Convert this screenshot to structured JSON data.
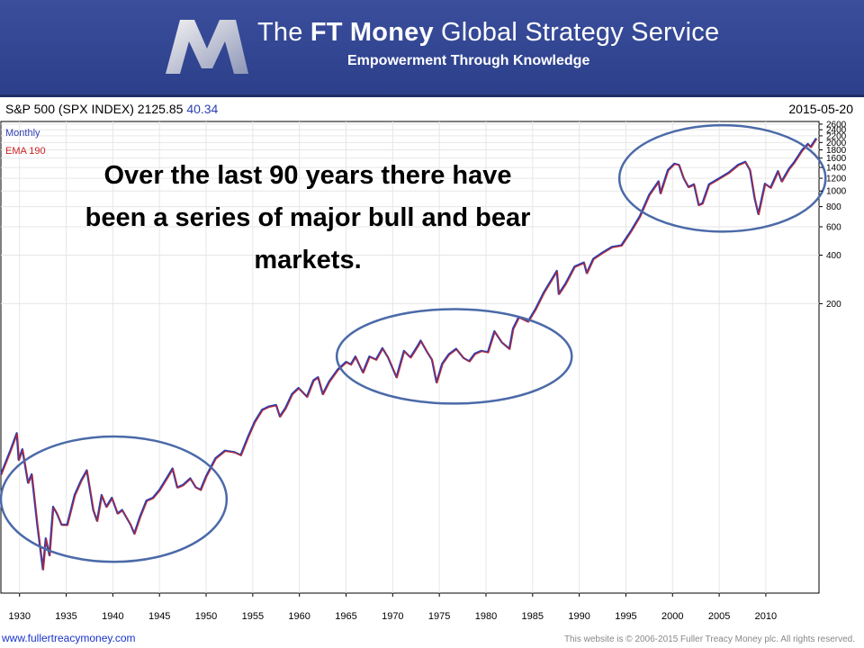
{
  "header": {
    "title_prefix": "The ",
    "title_bold": "FT Money",
    "title_suffix": " Global Strategy Service",
    "tagline": "Empowerment Through Knowledge",
    "brand_color": "#2c3f8a"
  },
  "chart_header": {
    "symbol": "S&P 500 (SPX INDEX) 2125.85",
    "change": "40.34",
    "date": "2015-05-20"
  },
  "annotation": {
    "lines": [
      "Over the last 90 years there have",
      "been a series of major bull and bear",
      "markets."
    ]
  },
  "chart_data": {
    "type": "line",
    "frequency": "Monthly",
    "yscale": "log",
    "ylim": [
      3.2,
      2700
    ],
    "xlim": [
      1928,
      2015.7
    ],
    "yticks": [
      200,
      400,
      600,
      800,
      1000,
      1200,
      1400,
      1600,
      1800,
      2000,
      2200,
      2400,
      2600
    ],
    "xticks": [
      1930,
      1935,
      1940,
      1945,
      1950,
      1955,
      1960,
      1965,
      1970,
      1975,
      1980,
      1985,
      1990,
      1995,
      2000,
      2005,
      2010
    ],
    "series": [
      {
        "name": "Monthly",
        "color": "#2c3fb0",
        "points": [
          [
            1928.0,
            17.5
          ],
          [
            1929.0,
            24.5
          ],
          [
            1929.7,
            31.5
          ],
          [
            1929.9,
            21.5
          ],
          [
            1930.3,
            25.0
          ],
          [
            1930.9,
            15.5
          ],
          [
            1931.3,
            17.5
          ],
          [
            1931.9,
            8.5
          ],
          [
            1932.5,
            4.5
          ],
          [
            1932.8,
            7.0
          ],
          [
            1933.2,
            5.5
          ],
          [
            1933.6,
            11.0
          ],
          [
            1934.0,
            10.0
          ],
          [
            1934.5,
            8.5
          ],
          [
            1935.1,
            8.5
          ],
          [
            1935.9,
            13.0
          ],
          [
            1936.6,
            16.0
          ],
          [
            1937.2,
            18.5
          ],
          [
            1937.9,
            10.5
          ],
          [
            1938.3,
            9.0
          ],
          [
            1938.8,
            13.0
          ],
          [
            1939.3,
            11.0
          ],
          [
            1939.9,
            12.5
          ],
          [
            1940.5,
            10.0
          ],
          [
            1941.0,
            10.5
          ],
          [
            1941.9,
            8.5
          ],
          [
            1942.3,
            7.5
          ],
          [
            1942.9,
            9.5
          ],
          [
            1943.6,
            12.0
          ],
          [
            1944.3,
            12.5
          ],
          [
            1945.0,
            14.0
          ],
          [
            1945.9,
            17.0
          ],
          [
            1946.4,
            19.0
          ],
          [
            1946.9,
            14.5
          ],
          [
            1947.5,
            15.0
          ],
          [
            1948.3,
            16.5
          ],
          [
            1948.9,
            14.5
          ],
          [
            1949.4,
            14.0
          ],
          [
            1950.0,
            17.0
          ],
          [
            1951.0,
            22.0
          ],
          [
            1952.0,
            24.5
          ],
          [
            1953.0,
            24.0
          ],
          [
            1953.7,
            23.0
          ],
          [
            1954.5,
            30.0
          ],
          [
            1955.2,
            37.0
          ],
          [
            1956.0,
            44.0
          ],
          [
            1956.7,
            46.0
          ],
          [
            1957.5,
            47.0
          ],
          [
            1957.9,
            40.0
          ],
          [
            1958.5,
            45.0
          ],
          [
            1959.2,
            55.0
          ],
          [
            1959.9,
            60.0
          ],
          [
            1960.8,
            53.0
          ],
          [
            1961.5,
            67.0
          ],
          [
            1962.0,
            70.0
          ],
          [
            1962.5,
            55.0
          ],
          [
            1963.2,
            66.0
          ],
          [
            1964.1,
            78.0
          ],
          [
            1965.0,
            87.0
          ],
          [
            1965.5,
            84.0
          ],
          [
            1966.0,
            94.0
          ],
          [
            1966.8,
            75.0
          ],
          [
            1967.5,
            94.0
          ],
          [
            1968.2,
            90.0
          ],
          [
            1968.9,
            106.0
          ],
          [
            1969.5,
            93.0
          ],
          [
            1970.4,
            70.0
          ],
          [
            1971.2,
            102.0
          ],
          [
            1971.9,
            93.0
          ],
          [
            1972.7,
            110.0
          ],
          [
            1973.0,
            118.0
          ],
          [
            1973.7,
            100.0
          ],
          [
            1974.2,
            90.0
          ],
          [
            1974.7,
            65.0
          ],
          [
            1975.3,
            85.0
          ],
          [
            1976.0,
            97.0
          ],
          [
            1976.8,
            105.0
          ],
          [
            1977.6,
            92.0
          ],
          [
            1978.2,
            88.0
          ],
          [
            1978.8,
            98.0
          ],
          [
            1979.5,
            102.0
          ],
          [
            1980.2,
            100.0
          ],
          [
            1980.9,
            135.0
          ],
          [
            1981.7,
            115.0
          ],
          [
            1982.5,
            105.0
          ],
          [
            1982.9,
            140.0
          ],
          [
            1983.5,
            165.0
          ],
          [
            1984.5,
            155.0
          ],
          [
            1985.3,
            185.0
          ],
          [
            1986.2,
            235.0
          ],
          [
            1987.6,
            320.0
          ],
          [
            1987.8,
            230.0
          ],
          [
            1988.5,
            265.0
          ],
          [
            1989.5,
            340.0
          ],
          [
            1990.5,
            360.0
          ],
          [
            1990.8,
            310.0
          ],
          [
            1991.5,
            380.0
          ],
          [
            1992.5,
            415.0
          ],
          [
            1993.5,
            450.0
          ],
          [
            1994.5,
            460.0
          ],
          [
            1995.5,
            560.0
          ],
          [
            1996.5,
            700.0
          ],
          [
            1997.5,
            950.0
          ],
          [
            1998.5,
            1150.0
          ],
          [
            1998.7,
            970.0
          ],
          [
            1999.5,
            1350.0
          ],
          [
            2000.2,
            1480.0
          ],
          [
            2000.7,
            1450.0
          ],
          [
            2001.2,
            1200.0
          ],
          [
            2001.7,
            1060.0
          ],
          [
            2002.3,
            1100.0
          ],
          [
            2002.8,
            820.0
          ],
          [
            2003.2,
            840.0
          ],
          [
            2003.9,
            1100.0
          ],
          [
            2004.9,
            1190.0
          ],
          [
            2006.0,
            1300.0
          ],
          [
            2007.0,
            1450.0
          ],
          [
            2007.8,
            1520.0
          ],
          [
            2008.3,
            1350.0
          ],
          [
            2008.8,
            900.0
          ],
          [
            2009.2,
            720.0
          ],
          [
            2009.9,
            1110.0
          ],
          [
            2010.5,
            1050.0
          ],
          [
            2011.3,
            1330.0
          ],
          [
            2011.7,
            1150.0
          ],
          [
            2012.5,
            1380.0
          ],
          [
            2013.0,
            1500.0
          ],
          [
            2013.9,
            1800.0
          ],
          [
            2014.5,
            1960.0
          ],
          [
            2014.8,
            1880.0
          ],
          [
            2015.4,
            2125.0
          ]
        ]
      },
      {
        "name": "EMA 190",
        "color": "#cc2222",
        "points": []
      }
    ],
    "highlights": [
      {
        "x": [
          1928.0,
          1952.2
        ],
        "y": [
          5.0,
          30.0
        ]
      },
      {
        "x": [
          1964.0,
          1989.2
        ],
        "y": [
          48.0,
          185.0
        ]
      },
      {
        "x": [
          1994.3,
          2016.4
        ],
        "y": [
          560.0,
          2560.0
        ]
      }
    ]
  },
  "footer": {
    "url": "www.fullertreacymoney.com",
    "copyright": "This website is © 2006-2015 Fuller Treacy Money plc. All rights reserved."
  }
}
